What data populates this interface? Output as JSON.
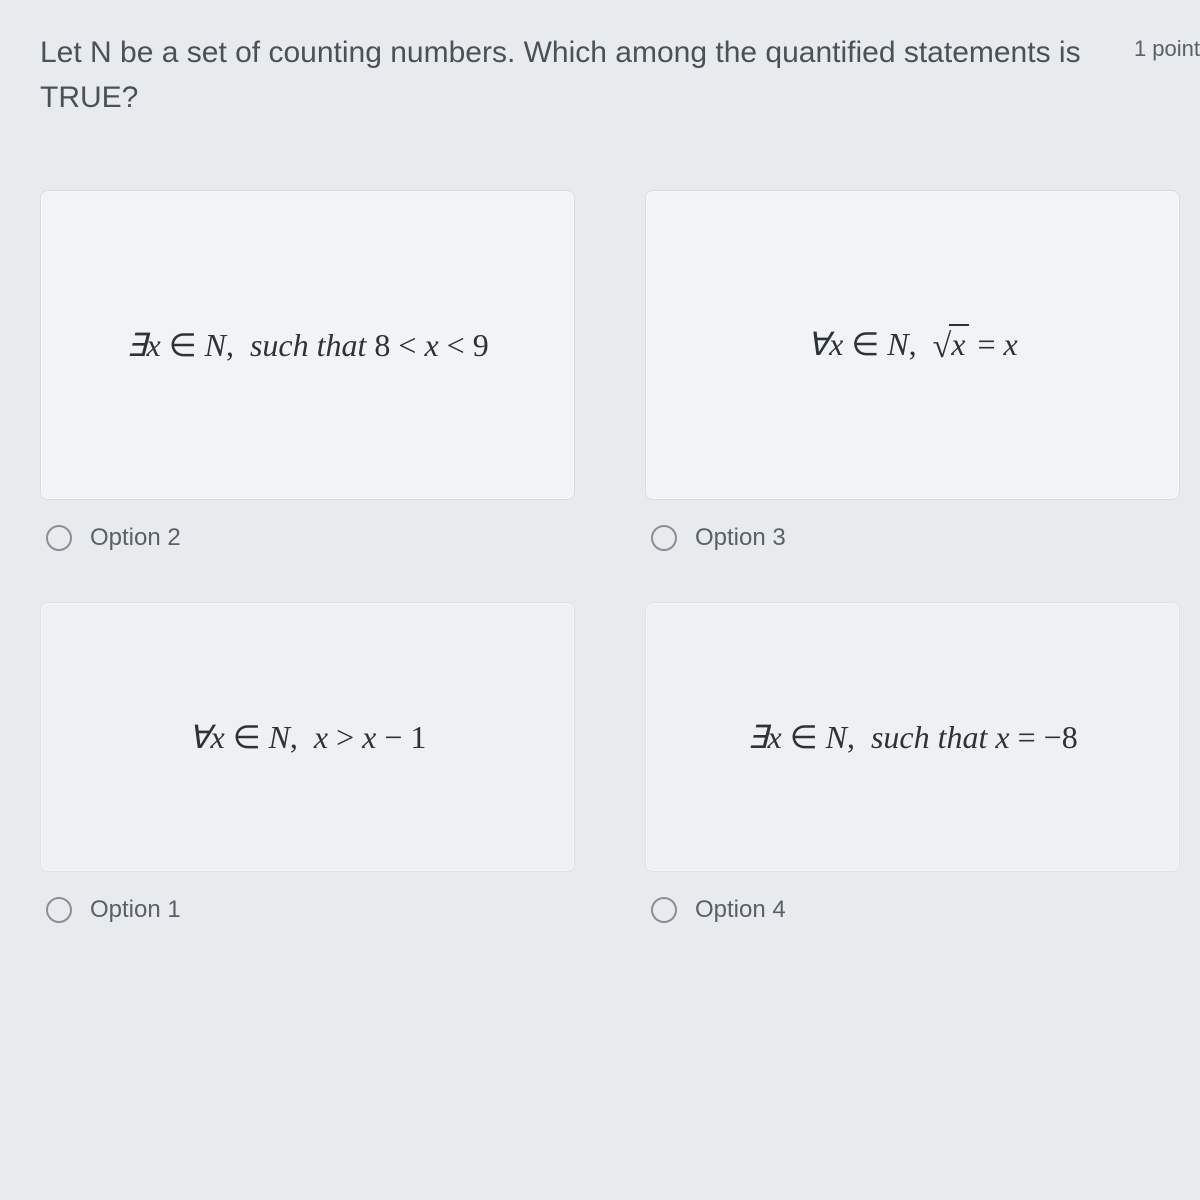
{
  "question": {
    "text": "Let N be a set of counting numbers. Which among the quantified statements is TRUE?",
    "points": "1 point"
  },
  "options": [
    {
      "position": "top-left",
      "math_html": "∃<span class='text'>x</span> <span class='up'>∈</span> <span class='text'>N</span><span class='up'>,</span>&nbsp; <span class='text'>such that</span> <span class='up'>8 &lt; </span><span class='text'>x</span><span class='up'> &lt; 9</span>",
      "label": "Option 2"
    },
    {
      "position": "top-right",
      "math_html": "∀<span class='text'>x</span> <span class='up'>∈</span> <span class='text'>N</span><span class='up'>,</span>&nbsp; <span class='sqrt'><span class='surd'>√</span><span class='radicand'><span class='text'>x</span></span></span> <span class='up'>=</span> <span class='text'>x</span>",
      "label": "Option 3"
    },
    {
      "position": "bottom-left",
      "math_html": "∀<span class='text'>x</span> <span class='up'>∈</span> <span class='text'>N</span><span class='up'>,</span>&nbsp; <span class='text'>x</span> <span class='up'>&gt;</span> <span class='text'>x</span> <span class='up'>− 1</span>",
      "label": "Option 1"
    },
    {
      "position": "bottom-right",
      "math_html": "∃<span class='text'>x</span> <span class='up'>∈</span> <span class='text'>N</span><span class='up'>,</span>&nbsp; <span class='text'>such that x</span> <span class='up'>= −8</span>",
      "label": "Option 4"
    }
  ],
  "styling": {
    "background_color": "#e8ebee",
    "card_bg": "#f1f3f5",
    "card_border": "#d7dbde",
    "text_color": "#3a4148",
    "muted_text": "#5a6068",
    "radio_border": "#8a8f95",
    "question_fontsize": 30,
    "math_fontsize": 32,
    "label_fontsize": 24
  }
}
